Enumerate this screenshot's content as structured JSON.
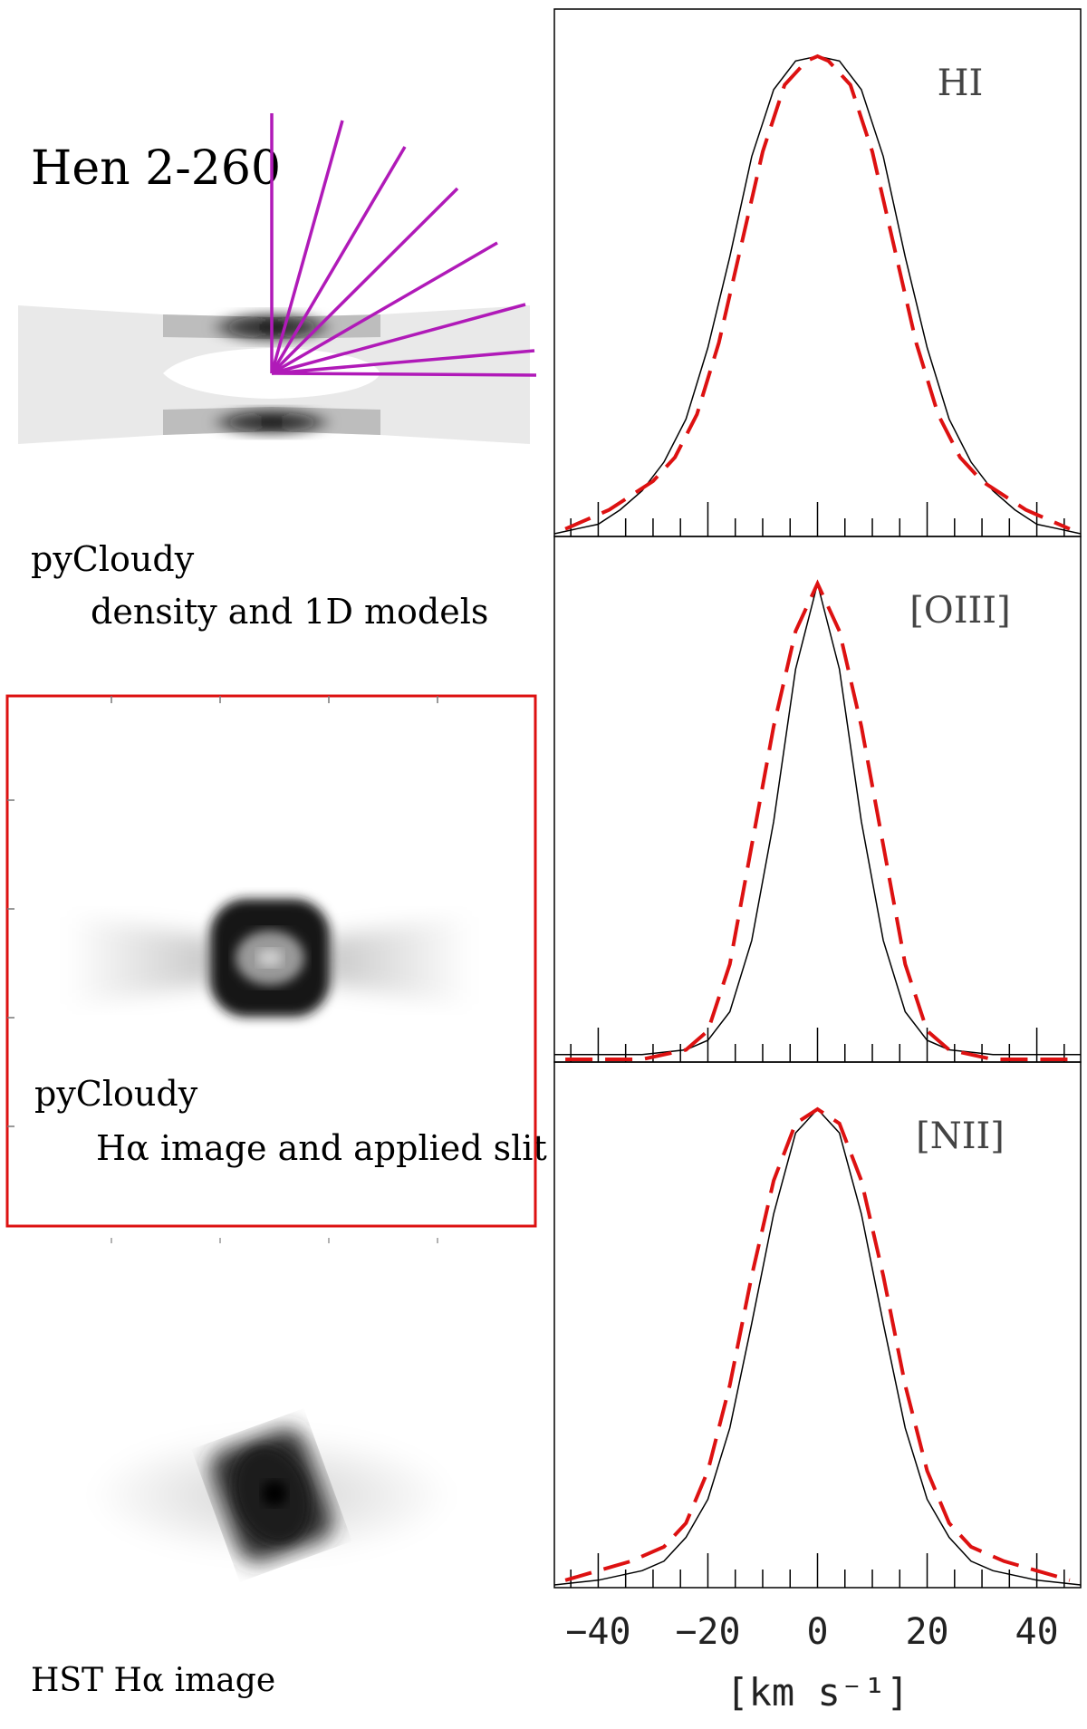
{
  "figure": {
    "object_name": "Hen 2-260",
    "captions": {
      "model_line1": "pyCloudy",
      "model_line2": "density and 1D models",
      "image_line1": "pyCloudy",
      "image_line2": "Hα image and applied slit",
      "hst": "HST Hα image"
    },
    "colors": {
      "rays": "#b01ab8",
      "model_curve": "#dd1111",
      "observed_curve": "#000000",
      "slit_box": "#dd1111"
    }
  },
  "chart_data": {
    "type": "line",
    "xlabel": "[km s⁻¹]",
    "xlim": [
      -48,
      48
    ],
    "xticks": [
      -40,
      -20,
      0,
      20,
      40
    ],
    "xtick_labels": [
      "−40",
      "−20",
      "0",
      "20",
      "40"
    ],
    "panels": [
      {
        "label": "HI",
        "series": [
          {
            "style": "solid",
            "x": [
              -48,
              -44,
              -40,
              -36,
              -32,
              -28,
              -24,
              -20,
              -16,
              -12,
              -8,
              -4,
              0,
              4,
              8,
              12,
              16,
              20,
              24,
              28,
              32,
              36,
              40,
              44,
              48
            ],
            "y": [
              0.0,
              0.01,
              0.02,
              0.05,
              0.09,
              0.15,
              0.24,
              0.39,
              0.58,
              0.79,
              0.93,
              0.99,
              1.0,
              0.99,
              0.93,
              0.79,
              0.58,
              0.39,
              0.24,
              0.15,
              0.09,
              0.05,
              0.02,
              0.01,
              0.0
            ]
          },
          {
            "style": "dashed",
            "x": [
              -46,
              -42,
              -38,
              -34,
              -30,
              -26,
              -22,
              -18,
              -14,
              -10,
              -6,
              -2,
              0,
              2,
              6,
              10,
              14,
              18,
              22,
              26,
              30,
              34,
              38,
              42,
              46
            ],
            "y": [
              0.01,
              0.03,
              0.05,
              0.08,
              0.11,
              0.16,
              0.25,
              0.4,
              0.6,
              0.8,
              0.94,
              0.99,
              1.0,
              0.99,
              0.94,
              0.8,
              0.6,
              0.4,
              0.25,
              0.16,
              0.11,
              0.08,
              0.05,
              0.03,
              0.01
            ]
          }
        ]
      },
      {
        "label": "[OIII]",
        "series": [
          {
            "style": "solid",
            "x": [
              -48,
              -40,
              -32,
              -24,
              -20,
              -16,
              -12,
              -8,
              -4,
              0,
              4,
              8,
              12,
              16,
              20,
              24,
              32,
              40,
              48
            ],
            "y": [
              0.01,
              0.01,
              0.01,
              0.02,
              0.04,
              0.1,
              0.25,
              0.5,
              0.82,
              1.0,
              0.82,
              0.5,
              0.25,
              0.1,
              0.04,
              0.02,
              0.01,
              0.01,
              0.01
            ]
          },
          {
            "style": "dashed",
            "x": [
              -46,
              -40,
              -32,
              -24,
              -20,
              -16,
              -12,
              -8,
              -4,
              0,
              4,
              8,
              12,
              16,
              20,
              24,
              32,
              40,
              46
            ],
            "y": [
              0.0,
              0.0,
              0.0,
              0.02,
              0.06,
              0.2,
              0.45,
              0.7,
              0.9,
              1.0,
              0.9,
              0.7,
              0.45,
              0.2,
              0.06,
              0.02,
              0.0,
              0.0,
              0.0
            ]
          }
        ]
      },
      {
        "label": "[NII]",
        "series": [
          {
            "style": "solid",
            "x": [
              -48,
              -40,
              -32,
              -28,
              -24,
              -20,
              -16,
              -12,
              -8,
              -4,
              0,
              4,
              8,
              12,
              16,
              20,
              24,
              28,
              32,
              40,
              48
            ],
            "y": [
              0.0,
              0.01,
              0.03,
              0.05,
              0.1,
              0.18,
              0.33,
              0.55,
              0.78,
              0.95,
              1.0,
              0.95,
              0.78,
              0.55,
              0.33,
              0.18,
              0.1,
              0.05,
              0.03,
              0.01,
              0.0
            ]
          },
          {
            "style": "dashed",
            "x": [
              -46,
              -40,
              -34,
              -28,
              -24,
              -20,
              -16,
              -12,
              -8,
              -4,
              0,
              4,
              8,
              12,
              16,
              20,
              24,
              28,
              34,
              40,
              46
            ],
            "y": [
              0.01,
              0.03,
              0.05,
              0.08,
              0.13,
              0.24,
              0.42,
              0.65,
              0.85,
              0.97,
              1.0,
              0.97,
              0.85,
              0.65,
              0.42,
              0.24,
              0.13,
              0.08,
              0.05,
              0.03,
              0.01
            ]
          }
        ]
      }
    ]
  }
}
